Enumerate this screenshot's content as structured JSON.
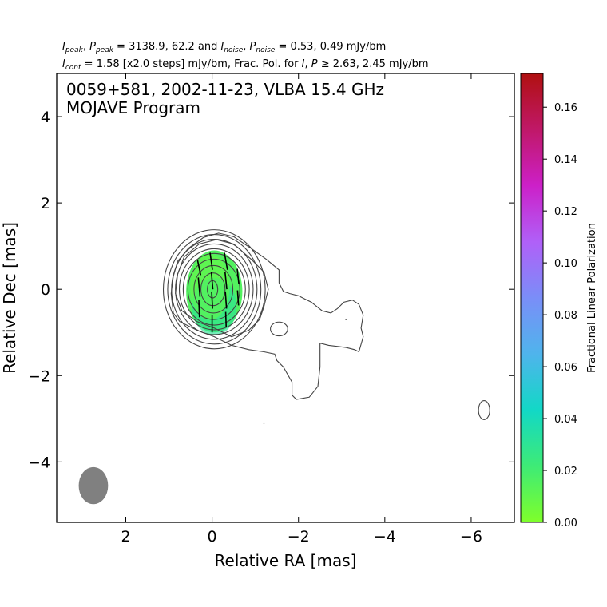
{
  "chart_data": {
    "type": "contour",
    "header_line1": {
      "ipeak_label": "I",
      "ipeak_sub": "peak",
      "ppeak_label": "P",
      "ppeak_sub": "peak",
      "peak_values": " = 3138.9, 62.2 and ",
      "inoise_label": "I",
      "inoise_sub": "noise",
      "pnoise_label": "P",
      "pnoise_sub": "noise",
      "noise_values": " = 0.53, 0.49 mJy/bm",
      "sep": ", "
    },
    "header_line2": {
      "icont_label": "I",
      "icont_sub": "cont",
      "cont_text": " = 1.58 [x2.0 steps] mJy/bm, Frac. Pol. for ",
      "i_label": "I",
      "p_label": "P",
      "thresh_text": " ≥  2.63, 2.45 mJy/bm",
      "sep": ", "
    },
    "title_line1": "0059+581, 2002-11-23, VLBA 15.4 GHz",
    "title_line2": "MOJAVE Program",
    "xlabel": "Relative RA [mas]",
    "ylabel": "Relative Dec [mas]",
    "xlim": [
      3.6,
      -7.0
    ],
    "ylim": [
      -5.4,
      5.0
    ],
    "x_ticks": [
      2,
      0,
      -2,
      -4,
      -6
    ],
    "x_tick_labels": [
      "2",
      "0",
      "−2",
      "−4",
      "−6"
    ],
    "y_ticks": [
      4,
      2,
      0,
      -2,
      -4
    ],
    "y_tick_labels": [
      "4",
      "2",
      "0",
      "−2",
      "−4"
    ],
    "colorbar": {
      "label": "Fractional Linear Polarization",
      "range": [
        0.0,
        0.173
      ],
      "ticks": [
        0.0,
        0.02,
        0.04,
        0.06,
        0.08,
        0.1,
        0.12,
        0.14,
        0.16
      ],
      "tick_labels": [
        "0.00",
        "0.02",
        "0.04",
        "0.06",
        "0.08",
        "0.10",
        "0.12",
        "0.14",
        "0.16"
      ],
      "colors": [
        "#7fff2a",
        "#3eeb76",
        "#12d8c6",
        "#4fb4ec",
        "#7a8ef8",
        "#b060f8",
        "#cc20c8",
        "#c01868",
        "#b01010"
      ]
    },
    "beam": {
      "x": 2.75,
      "y": -4.55,
      "major": 0.86,
      "minor": 0.68
    },
    "contour_levels_mjy": [
      1.58,
      3.16,
      6.32,
      12.64,
      25.28,
      50.56,
      101.12,
      202.24,
      404.48,
      808.96,
      1617.92
    ],
    "core_contours": [
      {
        "cx": -0.05,
        "cy": 0.0,
        "rx": 1.18,
        "ry": 1.38
      },
      {
        "cx": -0.05,
        "cy": 0.0,
        "rx": 1.08,
        "ry": 1.27
      },
      {
        "cx": -0.05,
        "cy": 0.0,
        "rx": 0.99,
        "ry": 1.16
      },
      {
        "cx": -0.05,
        "cy": 0.0,
        "rx": 0.9,
        "ry": 1.05
      },
      {
        "cx": -0.05,
        "cy": 0.0,
        "rx": 0.81,
        "ry": 0.94
      },
      {
        "cx": -0.05,
        "cy": 0.0,
        "rx": 0.72,
        "ry": 0.83
      },
      {
        "cx": -0.04,
        "cy": 0.0,
        "rx": 0.6,
        "ry": 0.7
      },
      {
        "cx": -0.03,
        "cy": 0.0,
        "rx": 0.45,
        "ry": 0.55
      },
      {
        "cx": -0.02,
        "cy": 0.0,
        "rx": 0.28,
        "ry": 0.38
      },
      {
        "cx": -0.01,
        "cy": 0.0,
        "rx": 0.12,
        "ry": 0.2
      }
    ],
    "jet_outline": [
      [
        -0.9,
        0.95
      ],
      [
        -1.25,
        0.7
      ],
      [
        -1.55,
        0.45
      ],
      [
        -1.55,
        0.15
      ],
      [
        -1.65,
        -0.05
      ],
      [
        -1.8,
        -0.1
      ],
      [
        -2.0,
        -0.15
      ],
      [
        -2.3,
        -0.3
      ],
      [
        -2.55,
        -0.5
      ],
      [
        -2.75,
        -0.55
      ],
      [
        -2.9,
        -0.45
      ],
      [
        -3.05,
        -0.3
      ],
      [
        -3.25,
        -0.25
      ],
      [
        -3.4,
        -0.35
      ],
      [
        -3.5,
        -0.6
      ],
      [
        -3.45,
        -0.9
      ],
      [
        -3.5,
        -1.1
      ],
      [
        -3.4,
        -1.45
      ],
      [
        -3.3,
        -1.4
      ],
      [
        -3.1,
        -1.35
      ],
      [
        -2.7,
        -1.3
      ],
      [
        -2.5,
        -1.25
      ],
      [
        -2.5,
        -1.8
      ],
      [
        -2.45,
        -2.25
      ],
      [
        -2.25,
        -2.5
      ],
      [
        -1.95,
        -2.55
      ],
      [
        -1.85,
        -2.45
      ],
      [
        -1.85,
        -2.15
      ],
      [
        -1.65,
        -1.8
      ],
      [
        -1.5,
        -1.65
      ],
      [
        -1.45,
        -1.5
      ],
      [
        -1.2,
        -1.45
      ],
      [
        -0.85,
        -1.4
      ],
      [
        -0.45,
        -1.3
      ],
      [
        -0.05,
        -1.1
      ],
      [
        0.35,
        -0.95
      ],
      [
        0.75,
        -0.75
      ],
      [
        0.9,
        -0.55
      ],
      [
        0.95,
        -0.1
      ],
      [
        0.9,
        0.3
      ],
      [
        0.8,
        0.65
      ],
      [
        0.55,
        0.95
      ],
      [
        0.2,
        1.2
      ],
      [
        -0.15,
        1.3
      ],
      [
        -0.5,
        1.22
      ]
    ],
    "jet_outline_2": [
      [
        -0.9,
        0.7
      ],
      [
        -1.2,
        0.4
      ],
      [
        -1.3,
        0.0
      ],
      [
        -1.2,
        -0.4
      ],
      [
        -1.1,
        -0.7
      ],
      [
        -0.85,
        -0.95
      ],
      [
        -0.45,
        -1.1
      ],
      [
        -0.05,
        -0.9
      ],
      [
        0.35,
        -0.75
      ],
      [
        0.7,
        -0.5
      ],
      [
        0.85,
        -0.1
      ],
      [
        0.8,
        0.35
      ],
      [
        0.65,
        0.75
      ],
      [
        0.3,
        1.05
      ],
      [
        -0.1,
        1.15
      ],
      [
        -0.5,
        1.05
      ]
    ],
    "islands": [
      {
        "cx": -1.55,
        "cy": -0.92,
        "rx": 0.2,
        "ry": 0.16
      },
      {
        "cx": -6.3,
        "cy": -2.8,
        "rx": 0.13,
        "ry": 0.22
      }
    ],
    "dots": [
      {
        "x": -3.1,
        "y": -0.7
      },
      {
        "x": -1.2,
        "y": -3.1
      }
    ],
    "frac_pol": {
      "cx": -0.05,
      "cy": -0.05,
      "rx": 0.65,
      "ry": 0.95,
      "value": 0.015
    },
    "evpa_vectors": [
      {
        "x": 0.3,
        "y": 0.5,
        "len": 0.35,
        "pa_deg": 12
      },
      {
        "x": 0.3,
        "y": 0.05,
        "len": 0.45,
        "pa_deg": 5
      },
      {
        "x": 0.3,
        "y": -0.45,
        "len": 0.4,
        "pa_deg": 2
      },
      {
        "x": 0.02,
        "y": 0.65,
        "len": 0.4,
        "pa_deg": 8
      },
      {
        "x": 0.0,
        "y": 0.2,
        "len": 0.4,
        "pa_deg": 5
      },
      {
        "x": 0.0,
        "y": -0.25,
        "len": 0.4,
        "pa_deg": 3
      },
      {
        "x": 0.0,
        "y": -0.8,
        "len": 0.4,
        "pa_deg": 0
      },
      {
        "x": -0.32,
        "y": 0.65,
        "len": 0.4,
        "pa_deg": 10
      },
      {
        "x": -0.32,
        "y": 0.2,
        "len": 0.4,
        "pa_deg": 6
      },
      {
        "x": -0.32,
        "y": -0.25,
        "len": 0.4,
        "pa_deg": 4
      },
      {
        "x": -0.32,
        "y": -0.7,
        "len": 0.35,
        "pa_deg": 2
      },
      {
        "x": -0.6,
        "y": 0.3,
        "len": 0.35,
        "pa_deg": 6
      },
      {
        "x": -0.6,
        "y": -0.2,
        "len": 0.35,
        "pa_deg": 4
      }
    ]
  }
}
